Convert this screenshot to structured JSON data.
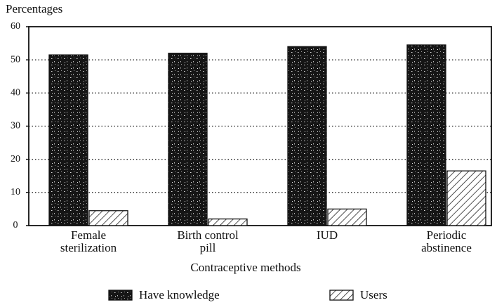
{
  "chart_data": {
    "type": "bar",
    "y_label": "Percentages",
    "x_label": "Contraceptive methods",
    "categories": [
      [
        "Female",
        "sterilization"
      ],
      [
        "Birth control",
        "pill"
      ],
      [
        "IUD"
      ],
      [
        "Periodic",
        "abstinence"
      ]
    ],
    "series": [
      {
        "name": "Have knowledge",
        "color": "#1a1a1a",
        "values": [
          51.5,
          52,
          54,
          54.5
        ]
      },
      {
        "name": "Users",
        "color": "#ffffff",
        "values": [
          4.5,
          2,
          5,
          16.5
        ]
      }
    ],
    "ylim": [
      0,
      60
    ],
    "yticks": [
      0,
      10,
      20,
      30,
      40,
      50,
      60
    ],
    "grid": true
  }
}
